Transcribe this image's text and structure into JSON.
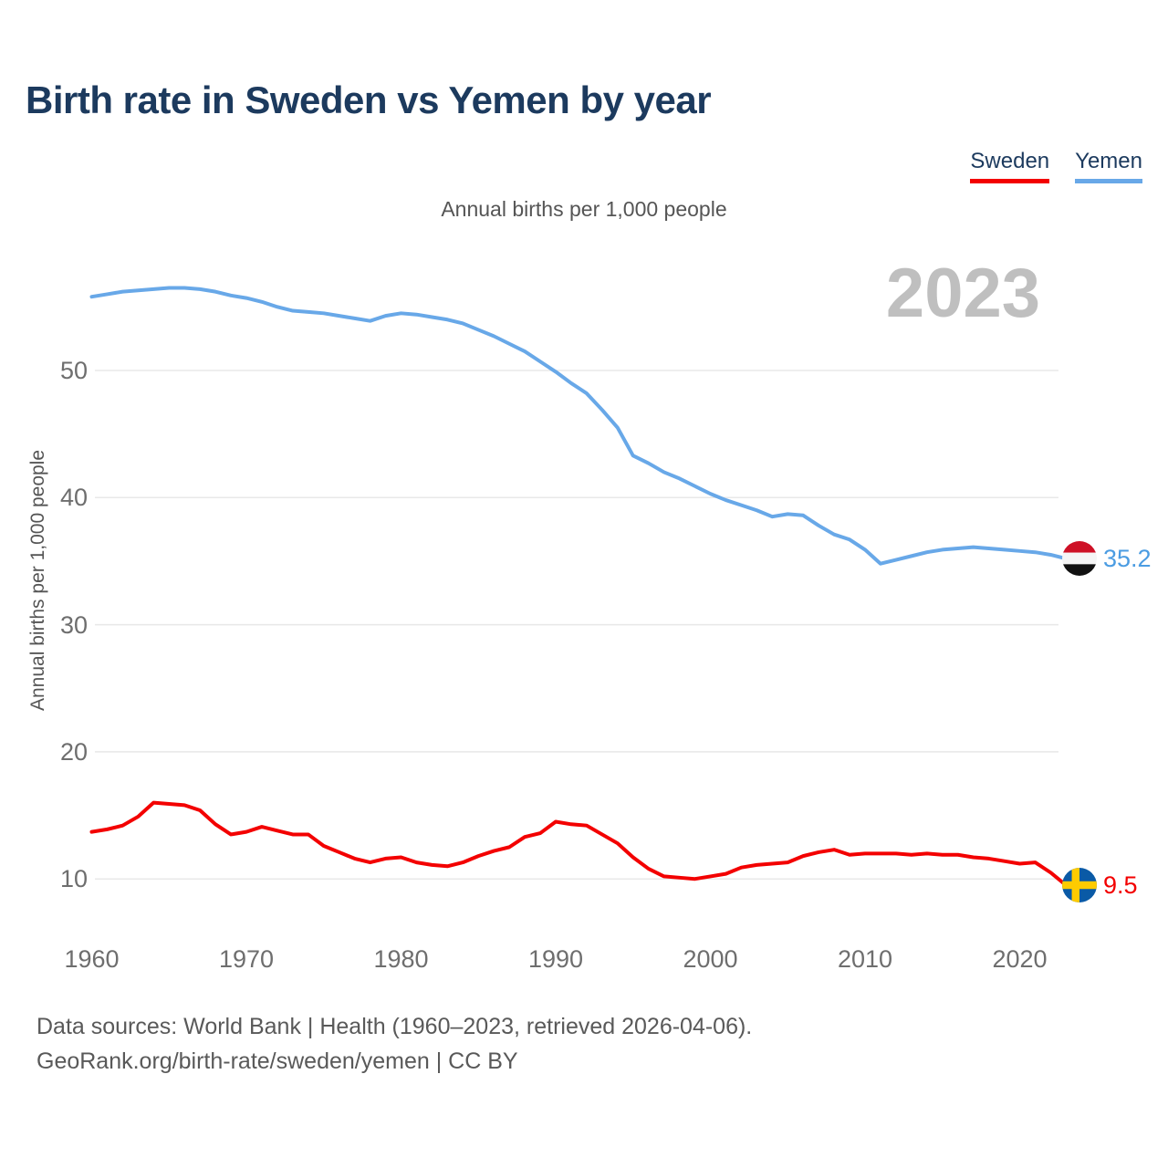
{
  "header": {
    "title": "Birth rate in Sweden vs Yemen by year",
    "subtitle": "Annual births per 1,000 people"
  },
  "legend": {
    "items": [
      {
        "label": "Sweden",
        "color": "#f30000"
      },
      {
        "label": "Yemen",
        "color": "#68a8e8"
      }
    ]
  },
  "watermark": {
    "year": "2023"
  },
  "axes": {
    "y_title": "Annual births per 1,000 people",
    "y_ticks": [
      50,
      40,
      30,
      20,
      10
    ],
    "x_ticks": [
      1960,
      1970,
      1980,
      1990,
      2000,
      2010,
      2020
    ]
  },
  "footer": {
    "line1": "Data sources: World Bank | Health (1960–2023, retrieved 2026-04-06).",
    "line2": "GeoRank.org/birth-rate/sweden/yemen | CC BY"
  },
  "chart_data": {
    "type": "line",
    "title": "Birth rate in Sweden vs Yemen by year",
    "xlabel": "",
    "ylabel": "Annual births per 1,000 people",
    "xlim": [
      1960,
      2023
    ],
    "ylim": [
      8,
      58
    ],
    "grid": true,
    "legend_position": "top-right",
    "x": [
      1960,
      1961,
      1962,
      1963,
      1964,
      1965,
      1966,
      1967,
      1968,
      1969,
      1970,
      1971,
      1972,
      1973,
      1974,
      1975,
      1976,
      1977,
      1978,
      1979,
      1980,
      1981,
      1982,
      1983,
      1984,
      1985,
      1986,
      1987,
      1988,
      1989,
      1990,
      1991,
      1992,
      1993,
      1994,
      1995,
      1996,
      1997,
      1998,
      1999,
      2000,
      2001,
      2002,
      2003,
      2004,
      2005,
      2006,
      2007,
      2008,
      2009,
      2010,
      2011,
      2012,
      2013,
      2014,
      2015,
      2016,
      2017,
      2018,
      2019,
      2020,
      2021,
      2022,
      2023
    ],
    "series": [
      {
        "name": "Sweden",
        "color": "#f30000",
        "label_color": "#f30000",
        "end_label": "9.5",
        "flag": "sweden",
        "values": [
          13.7,
          13.9,
          14.2,
          14.9,
          16.0,
          15.9,
          15.8,
          15.4,
          14.3,
          13.5,
          13.7,
          14.1,
          13.8,
          13.5,
          13.5,
          12.6,
          12.1,
          11.6,
          11.3,
          11.6,
          11.7,
          11.3,
          11.1,
          11.0,
          11.3,
          11.8,
          12.2,
          12.5,
          13.3,
          13.6,
          14.5,
          14.3,
          14.2,
          13.5,
          12.8,
          11.7,
          10.8,
          10.2,
          10.1,
          10.0,
          10.2,
          10.4,
          10.9,
          11.1,
          11.2,
          11.3,
          11.8,
          12.1,
          12.3,
          11.9,
          12.0,
          12.0,
          12.0,
          11.9,
          12.0,
          11.9,
          11.9,
          11.7,
          11.6,
          11.4,
          11.2,
          11.3,
          10.5,
          9.5
        ]
      },
      {
        "name": "Yemen",
        "color": "#68a8e8",
        "label_color": "#4b9ce2",
        "end_label": "35.2",
        "flag": "yemen",
        "values": [
          55.8,
          56.0,
          56.2,
          56.3,
          56.4,
          56.5,
          56.5,
          56.4,
          56.2,
          55.9,
          55.7,
          55.4,
          55.0,
          54.7,
          54.6,
          54.5,
          54.3,
          54.1,
          53.9,
          54.3,
          54.5,
          54.4,
          54.2,
          54.0,
          53.7,
          53.2,
          52.7,
          52.1,
          51.5,
          50.7,
          49.9,
          49.0,
          48.2,
          46.9,
          45.5,
          43.3,
          42.7,
          42.0,
          41.5,
          40.9,
          40.3,
          39.8,
          39.4,
          39.0,
          38.5,
          38.7,
          38.6,
          37.8,
          37.1,
          36.7,
          35.9,
          34.8,
          35.1,
          35.4,
          35.7,
          35.9,
          36.0,
          36.1,
          36.0,
          35.9,
          35.8,
          35.7,
          35.5,
          35.2
        ]
      }
    ]
  }
}
